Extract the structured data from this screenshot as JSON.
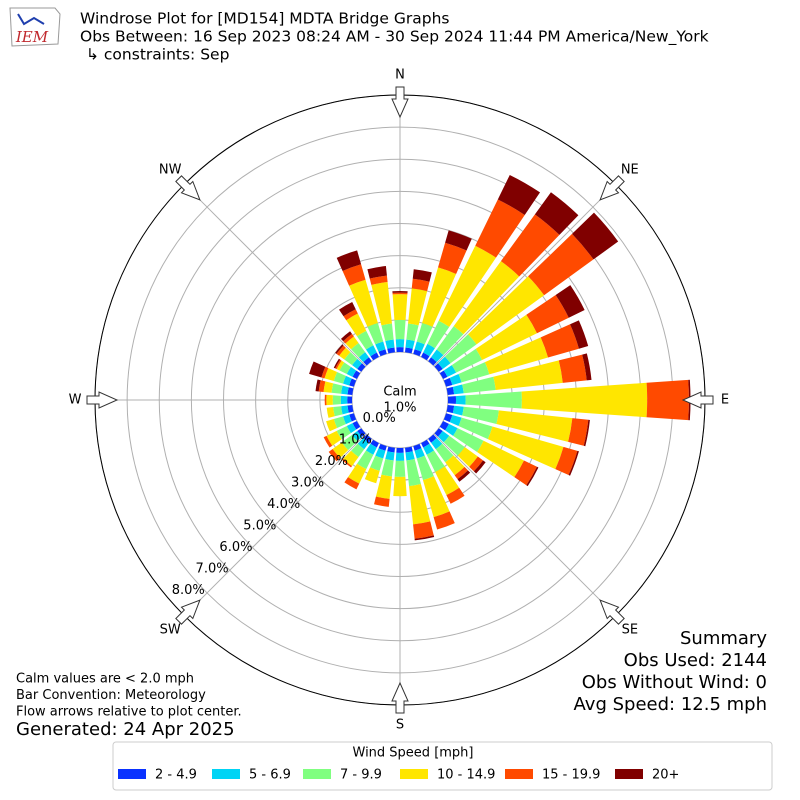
{
  "chart_data": {
    "type": "windrose",
    "logo": "IEM",
    "title": "Windrose Plot for [MD154] MDTA Bridge Graphs",
    "subtitle": "Obs Between: 16 Sep 2023 08:24 AM - 30 Sep 2024 11:44 PM America/New_York",
    "constraints": "↳ constraints: Sep",
    "compass": [
      "N",
      "NE",
      "E",
      "SE",
      "S",
      "SW",
      "W",
      "NW"
    ],
    "calm": {
      "label": "Calm",
      "value": 1.0,
      "value_label": "1.0%"
    },
    "rlim": [
      0,
      8
    ],
    "rticks": [
      {
        "value": 0,
        "label": "0.0%"
      },
      {
        "value": 1,
        "label": "1.0%"
      },
      {
        "value": 2,
        "label": "2.0%"
      },
      {
        "value": 3,
        "label": "3.0%"
      },
      {
        "value": 4,
        "label": "4.0%"
      },
      {
        "value": 5,
        "label": "5.0%"
      },
      {
        "value": 6,
        "label": "6.0%"
      },
      {
        "value": 7,
        "label": "7.0%"
      },
      {
        "value": 8,
        "label": "8.0%"
      }
    ],
    "grid": true,
    "legend_title": "Wind Speed [mph]",
    "series": [
      {
        "name": "2 - 4.9",
        "color": "#0a32ff",
        "values": [
          0.15,
          0.15,
          0.15,
          0.15,
          0.15,
          0.15,
          0.15,
          0.2,
          0.2,
          0.25,
          0.2,
          0.2,
          0.2,
          0.15,
          0.15,
          0.15,
          0.15,
          0.15,
          0.15,
          0.15,
          0.15,
          0.15,
          0.15,
          0.15,
          0.15,
          0.15,
          0.15,
          0.15,
          0.15,
          0.15,
          0.15,
          0.15,
          0.15,
          0.15,
          0.15,
          0.15
        ]
      },
      {
        "name": "5 - 6.9",
        "color": "#00d4f5",
        "values": [
          0.25,
          0.25,
          0.25,
          0.3,
          0.3,
          0.3,
          0.3,
          0.3,
          0.3,
          0.3,
          0.3,
          0.3,
          0.3,
          0.25,
          0.25,
          0.25,
          0.25,
          0.25,
          0.25,
          0.25,
          0.25,
          0.25,
          0.25,
          0.2,
          0.2,
          0.2,
          0.2,
          0.2,
          0.2,
          0.2,
          0.2,
          0.2,
          0.2,
          0.25,
          0.25,
          0.25
        ]
      },
      {
        "name": "7 - 9.9",
        "color": "#80ff80",
        "values": [
          0.6,
          0.5,
          0.6,
          0.8,
          0.9,
          1.0,
          0.9,
          0.9,
          1.0,
          1.75,
          1.1,
          1.0,
          0.9,
          0.6,
          0.5,
          0.6,
          0.7,
          0.8,
          0.5,
          0.5,
          0.4,
          0.5,
          0.3,
          0.4,
          0.35,
          0.3,
          0.25,
          0.25,
          0.3,
          0.3,
          0.25,
          0.3,
          0.35,
          0.5,
          0.6,
          0.5
        ]
      },
      {
        "name": "10 - 14.9",
        "color": "#ffe600",
        "values": [
          0.8,
          1.1,
          1.8,
          2.6,
          2.5,
          2.6,
          1.9,
          1.9,
          2.1,
          3.9,
          2.3,
          2.3,
          1.4,
          0.5,
          0.5,
          0.8,
          1.2,
          1.2,
          0.6,
          0.7,
          0.4,
          0.5,
          0.35,
          0.35,
          0.35,
          0.25,
          0.2,
          0.2,
          0.25,
          0.3,
          0.1,
          0.2,
          0.25,
          0.6,
          1.4,
          1.3
        ]
      },
      {
        "name": "15 - 19.9",
        "color": "#ff4a00",
        "values": [
          0.05,
          0.3,
          0.8,
          1.6,
          1.8,
          1.9,
          1.1,
          1.0,
          0.75,
          1.3,
          0.5,
          0.45,
          0.45,
          0.2,
          0.15,
          0.3,
          0.4,
          0.45,
          0,
          0.25,
          0,
          0.2,
          0.05,
          0.15,
          0.1,
          0,
          0,
          0.05,
          0.15,
          0.1,
          0.05,
          0.1,
          0.1,
          0.15,
          0.5,
          0.2
        ]
      },
      {
        "name": "20+",
        "color": "#800000",
        "values": [
          0.05,
          0.3,
          0.4,
          0.85,
          0.85,
          0.95,
          0.55,
          0.3,
          0.15,
          0.05,
          0.05,
          0.05,
          0.05,
          0.1,
          0.1,
          0,
          0,
          0.05,
          0,
          0,
          0,
          0,
          0,
          0,
          0,
          0,
          0,
          0,
          0.1,
          0.4,
          0.05,
          0.05,
          0.1,
          0.25,
          0.45,
          0.3
        ]
      }
    ],
    "summary": [
      "Summary",
      "Obs Used: 2144",
      "Obs Without Wind: 0",
      "Avg Speed: 12.5 mph"
    ],
    "notes": [
      "Calm values are < 2.0 mph",
      "Bar Convention: Meteorology",
      "Flow arrows relative to plot center."
    ],
    "generated": "Generated: 24 Apr 2025"
  }
}
